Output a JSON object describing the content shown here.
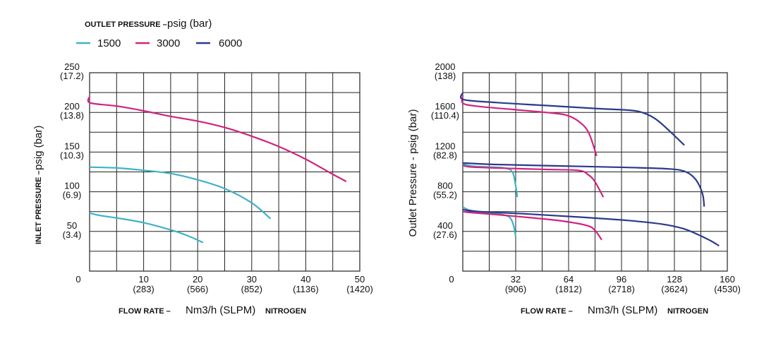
{
  "legend": {
    "title_prefix": "OUTLET PRESSURE –",
    "title_unit": "psig (bar)",
    "entries": [
      {
        "label": "1500",
        "color": "#3fb3c7"
      },
      {
        "label": "3000",
        "color": "#d0247f"
      },
      {
        "label": "6000",
        "color": "#2b3a8c"
      }
    ]
  },
  "chart_data": [
    {
      "type": "line",
      "ylabel_prefix": "INLET PRESSURE –",
      "ylabel_unit": "psig (bar)",
      "xlabel_prefix": "FLOW RATE –",
      "xlabel_unit": "Nm3/h (SLPM)",
      "xlabel_suffix": "NITROGEN",
      "xlim": [
        0,
        50
      ],
      "ylim": [
        0,
        250
      ],
      "origin_label": "0",
      "x_ticks": [
        {
          "value": 10,
          "line1": "10",
          "line2": "(283)"
        },
        {
          "value": 20,
          "line1": "20",
          "line2": "(566)"
        },
        {
          "value": 30,
          "line1": "30",
          "line2": "(852)"
        },
        {
          "value": 40,
          "line1": "40",
          "line2": "(1136)"
        },
        {
          "value": 50,
          "line1": "50",
          "line2": "(1420)"
        }
      ],
      "y_ticks": [
        {
          "value": 50,
          "line1": "50",
          "line2": "(3.4)"
        },
        {
          "value": 100,
          "line1": "100",
          "line2": "(6.9)"
        },
        {
          "value": 150,
          "line1": "150",
          "line2": "(10.3)"
        },
        {
          "value": 200,
          "line1": "200",
          "line2": "(13.8)"
        },
        {
          "value": 250,
          "line1": "250",
          "line2": "(17.2)"
        }
      ],
      "series": [
        {
          "name": "1500",
          "color": "#3fb3c7",
          "x": [
            0,
            2,
            5,
            10,
            15,
            18,
            21
          ],
          "y": [
            73,
            70,
            67,
            61,
            52,
            45,
            36
          ]
        },
        {
          "name": "1500",
          "color": "#3fb3c7",
          "x": [
            0,
            5,
            10,
            15,
            20,
            25,
            30,
            33.5
          ],
          "y": [
            131,
            130,
            127,
            123,
            115,
            104,
            86,
            66
          ]
        },
        {
          "name": "3000",
          "color": "#d0247f",
          "x": [
            0,
            0.1,
            5,
            10,
            15,
            20,
            25,
            30,
            35,
            40,
            45,
            47.5
          ],
          "y": [
            220,
            212,
            208,
            202,
            195,
            189,
            181,
            170,
            157,
            141,
            122,
            113
          ]
        }
      ]
    },
    {
      "type": "line",
      "ylabel_text": "Outlet Pressure - psig (bar)",
      "xlabel_prefix": "FLOW RATE –",
      "xlabel_unit": "Nm3/h (SLPM)",
      "xlabel_suffix": "NITROGEN",
      "xlim": [
        0,
        160
      ],
      "ylim": [
        0,
        2000
      ],
      "origin_label": "0",
      "x_ticks": [
        {
          "value": 32,
          "line1": "32",
          "line2": "(906)"
        },
        {
          "value": 64,
          "line1": "64",
          "line2": "(1812)"
        },
        {
          "value": 96,
          "line1": "96",
          "line2": "(2718)"
        },
        {
          "value": 128,
          "line1": "128",
          "line2": "(3624)"
        },
        {
          "value": 160,
          "line1": "160",
          "line2": "(4530)"
        }
      ],
      "y_ticks": [
        {
          "value": 400,
          "line1": "400",
          "line2": "(27.6)"
        },
        {
          "value": 800,
          "line1": "800",
          "line2": "(55.2)"
        },
        {
          "value": 1200,
          "line1": "1200",
          "line2": "(82.8)"
        },
        {
          "value": 1600,
          "line1": "1600",
          "line2": "(110.4)"
        },
        {
          "value": 2000,
          "line1": "2000",
          "line2": "(138)"
        }
      ],
      "series": [
        {
          "name": "1500",
          "color": "#3fb3c7",
          "x": [
            0,
            5,
            15,
            25,
            29,
            31,
            32
          ],
          "y": [
            645,
            610,
            590,
            565,
            530,
            440,
            345
          ]
        },
        {
          "name": "1500",
          "color": "#3fb3c7",
          "x": [
            0,
            5,
            15,
            25,
            30,
            32,
            33
          ],
          "y": [
            1080,
            1060,
            1050,
            1040,
            1000,
            860,
            745
          ]
        },
        {
          "name": "3000",
          "color": "#d0247f",
          "x": [
            0,
            5,
            20,
            40,
            60,
            75,
            80,
            84
          ],
          "y": [
            600,
            590,
            570,
            540,
            505,
            460,
            410,
            315
          ]
        },
        {
          "name": "3000",
          "color": "#d0247f",
          "x": [
            0,
            5,
            30,
            50,
            70,
            76,
            80,
            85
          ],
          "y": [
            1070,
            1050,
            1035,
            1025,
            1015,
            970,
            900,
            745
          ]
        },
        {
          "name": "3000",
          "color": "#d0247f",
          "x": [
            0,
            0.3,
            10,
            30,
            50,
            62,
            70,
            76,
            81
          ],
          "y": [
            1760,
            1690,
            1660,
            1630,
            1600,
            1575,
            1510,
            1400,
            1160
          ]
        },
        {
          "name": "6000",
          "color": "#2b3a8c",
          "x": [
            0,
            10,
            40,
            70,
            100,
            120,
            133,
            142,
            150,
            155
          ],
          "y": [
            620,
            600,
            575,
            545,
            510,
            475,
            430,
            370,
            305,
            255
          ]
        },
        {
          "name": "6000",
          "color": "#2b3a8c",
          "x": [
            0,
            20,
            60,
            100,
            125,
            135,
            141,
            145,
            146
          ],
          "y": [
            1090,
            1075,
            1060,
            1045,
            1030,
            1000,
            920,
            780,
            650
          ]
        },
        {
          "name": "6000",
          "color": "#2b3a8c",
          "x": [
            0,
            0.3,
            20,
            50,
            80,
            102,
            110,
            116,
            122,
            134
          ],
          "y": [
            1800,
            1730,
            1700,
            1670,
            1640,
            1620,
            1590,
            1540,
            1460,
            1270
          ]
        }
      ]
    }
  ]
}
